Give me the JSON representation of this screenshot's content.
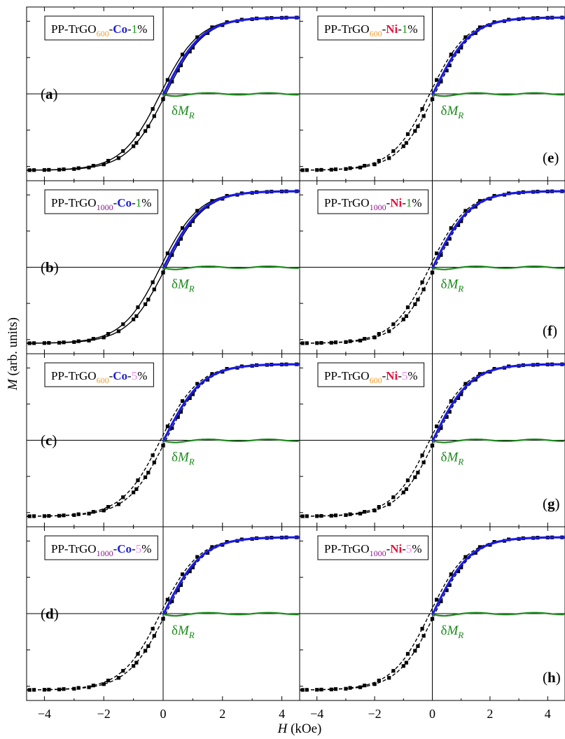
{
  "figure": {
    "ylabel_var": "M",
    "ylabel_unit": " (arb. units)",
    "xlabel_var": "H",
    "xlabel_unit": " (kOe)",
    "xticks": [
      "-4",
      "-2",
      "0",
      "2",
      "4"
    ]
  },
  "chart_data": [
    {
      "type": "line",
      "panel": "(a)",
      "letter": "a",
      "legend": {
        "prefix": "PP-TrGO",
        "temp": "600",
        "element": "Co",
        "pct": "1",
        "suffix": "%"
      },
      "xlim": [
        -4.6,
        4.6
      ],
      "annotation": "δM_R",
      "grid": false
    },
    {
      "type": "line",
      "panel": "(b)",
      "letter": "b",
      "legend": {
        "prefix": "PP-TrGO",
        "temp": "1000",
        "element": "Co",
        "pct": "1",
        "suffix": "%"
      },
      "xlim": [
        -4.6,
        4.6
      ],
      "annotation": "δM_R",
      "grid": false
    },
    {
      "type": "line",
      "panel": "(c)",
      "letter": "c",
      "legend": {
        "prefix": "PP-TrGO",
        "temp": "600",
        "element": "Co",
        "pct": "5",
        "suffix": "%"
      },
      "xlim": [
        -4.6,
        4.6
      ],
      "annotation": "δM_R",
      "grid": false
    },
    {
      "type": "line",
      "panel": "(d)",
      "letter": "d",
      "legend": {
        "prefix": "PP-TrGO",
        "temp": "1000",
        "element": "Co",
        "pct": "5",
        "suffix": "%"
      },
      "xlim": [
        -4.6,
        4.6
      ],
      "annotation": "δM_R",
      "grid": false
    },
    {
      "type": "line",
      "panel": "(e)",
      "letter": "e",
      "legend": {
        "prefix": "PP-TrGO",
        "temp": "600",
        "element": "Ni",
        "pct": "1",
        "suffix": "%"
      },
      "xlim": [
        -4.6,
        4.6
      ],
      "annotation": "δM_R",
      "grid": false
    },
    {
      "type": "line",
      "panel": "(f)",
      "letter": "f",
      "legend": {
        "prefix": "PP-TrGO",
        "temp": "1000",
        "element": "Ni",
        "pct": "1",
        "suffix": "%"
      },
      "xlim": [
        -4.6,
        4.6
      ],
      "annotation": "δM_R",
      "grid": false
    },
    {
      "type": "line",
      "panel": "(g)",
      "letter": "g",
      "legend": {
        "prefix": "PP-TrGO",
        "temp": "600",
        "element": "Ni",
        "pct": "5",
        "suffix": "%"
      },
      "xlim": [
        -4.6,
        4.6
      ],
      "annotation": "δM_R",
      "grid": false
    },
    {
      "type": "line",
      "panel": "(h)",
      "letter": "h",
      "legend": {
        "prefix": "PP-TrGO",
        "temp": "1000",
        "element": "Ni",
        "pct": "5",
        "suffix": "%"
      },
      "xlim": [
        -4.6,
        4.6
      ],
      "annotation": "δM_R",
      "grid": false
    }
  ],
  "colors": {
    "temp_600": "#f39c2a",
    "temp_1000": "#8b1a8b",
    "Co": "#1e1ee0",
    "Ni": "#e8103c",
    "pct_1": "#1f9a1f",
    "pct_5": "#ee88ee",
    "fit_curve": "#1a1ae6",
    "delta_curve": "#1e8a1e",
    "data": "#000000"
  }
}
